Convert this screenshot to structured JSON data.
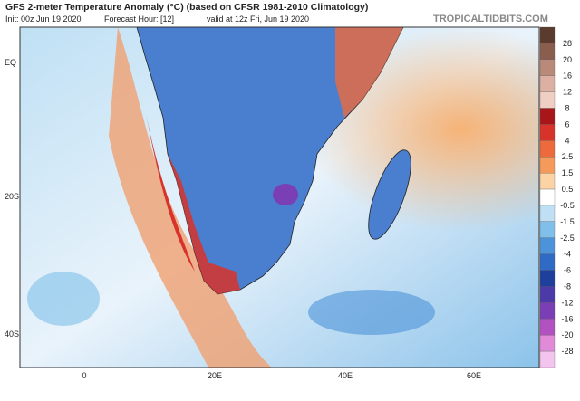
{
  "header": {
    "title": "GFS 2-meter Temperature Anomaly (°C) (based on CFSR 1981-2010 Climatology)",
    "init": "Init: 00z Jun 19 2020",
    "forecast_hour": "Forecast Hour: [12]",
    "valid": "valid at 12z Fri, Jun 19 2020",
    "site": "TROPICALTIDBITS.COM"
  },
  "map": {
    "lat_labels": [
      "EQ",
      "20S",
      "40S"
    ],
    "lon_labels": [
      "0",
      "20E",
      "40E",
      "60E"
    ]
  },
  "colorbar": {
    "labels": [
      "28",
      "20",
      "16",
      "12",
      "8",
      "6",
      "4",
      "2.5",
      "1.5",
      "0.5",
      "-0.5",
      "-1.5",
      "-2.5",
      "-4",
      "-6",
      "-8",
      "-12",
      "-16",
      "-20",
      "-28"
    ],
    "colors": [
      "#5a3b2e",
      "#8a5e4e",
      "#b98a7a",
      "#dcb0a2",
      "#efcfc4",
      "#a8161a",
      "#d8332a",
      "#ec6a3c",
      "#f59a5a",
      "#fbd3a4",
      "#ffffff",
      "#bfe0f4",
      "#7fbfea",
      "#4d93d9",
      "#2f6ac4",
      "#1f3f9c",
      "#4b3aa8",
      "#7a3fb4",
      "#b252c0",
      "#e08ad8",
      "#f2c4ee"
    ]
  }
}
